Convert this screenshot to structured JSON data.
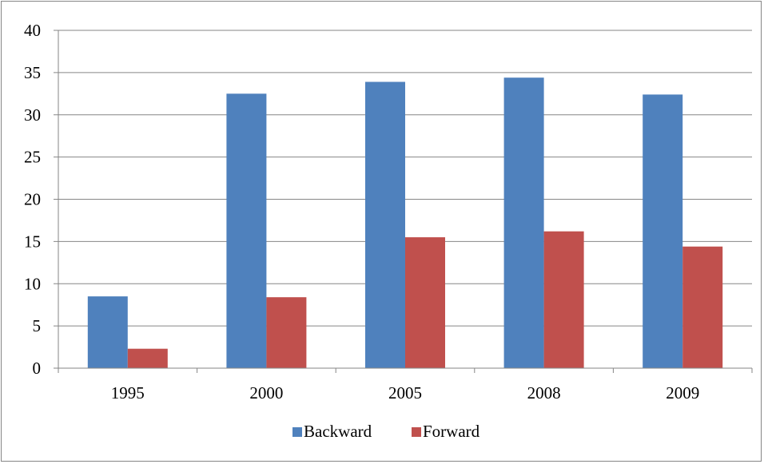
{
  "chart_data": {
    "type": "bar",
    "title": "",
    "xlabel": "",
    "ylabel": "",
    "categories": [
      "1995",
      "2000",
      "2005",
      "2008",
      "2009"
    ],
    "series": [
      {
        "name": "Backward",
        "values": [
          8.5,
          32.5,
          33.9,
          34.4,
          32.4
        ],
        "color": "#4F81BD"
      },
      {
        "name": "Forward",
        "values": [
          2.3,
          8.4,
          15.5,
          16.2,
          14.4
        ],
        "color": "#C0504D"
      }
    ],
    "ylim": [
      0,
      40
    ],
    "yticks": [
      0,
      5,
      10,
      15,
      20,
      25,
      30,
      35,
      40
    ],
    "grid": true,
    "legend": "bottom"
  }
}
